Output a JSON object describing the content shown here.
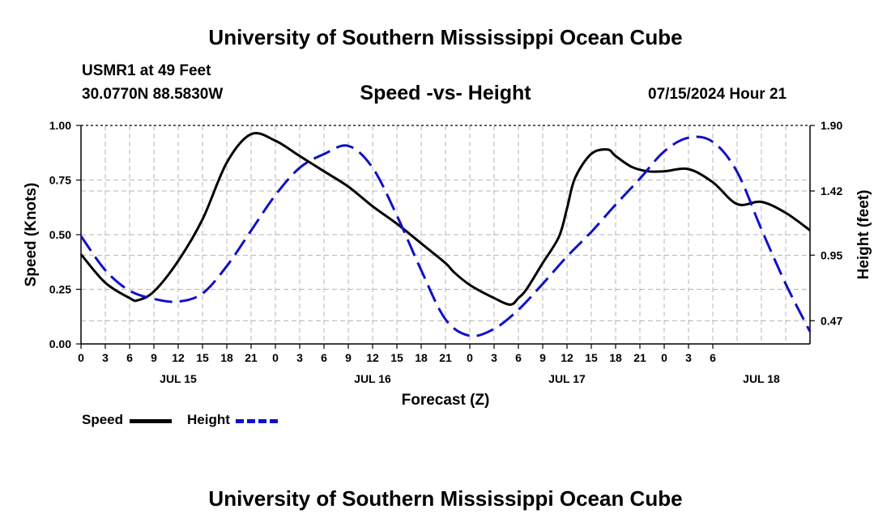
{
  "title_top": "University of Southern Mississippi Ocean Cube",
  "title_bottom": "University of Southern Mississippi Ocean Cube",
  "station": "USMR1 at 49 Feet",
  "coords": "30.0770N  88.5830W",
  "datetime": "07/15/2024 Hour 21",
  "legend": {
    "speed_label": "Speed",
    "height_label": "Height"
  },
  "colors": {
    "speed": "#000000",
    "height": "#1010c8",
    "grid": "#b4b4b4"
  },
  "chart_data": {
    "type": "line",
    "title": "Speed -vs- Height",
    "xlabel": "Forecast (Z)",
    "ylabel": "Speed (Knots)",
    "ylabel_right": "Height (feet)",
    "x_range_hours": [
      0,
      90
    ],
    "ylim": [
      0,
      1
    ],
    "ylim_right": [
      0.3,
      1.9
    ],
    "x_tick_labels": [
      "0",
      "3",
      "6",
      "9",
      "12",
      "15",
      "18",
      "21",
      "0",
      "3",
      "6",
      "9",
      "12",
      "15",
      "18",
      "21",
      "0",
      "3",
      "6",
      "9",
      "12",
      "15",
      "18",
      "21",
      "0",
      "3",
      "6"
    ],
    "day_labels": [
      {
        "label": "JUL 15",
        "hour": 12
      },
      {
        "label": "JUL 16",
        "hour": 36
      },
      {
        "label": "JUL 17",
        "hour": 60
      },
      {
        "label": "JUL 18",
        "hour": 84
      }
    ],
    "y_ticks": [
      0.0,
      0.25,
      0.5,
      0.75,
      1.0
    ],
    "y_tick_labels": [
      "0.00",
      "0.25",
      "0.50",
      "0.75",
      "1.00"
    ],
    "y_right_ticks": [
      0.47,
      0.95,
      1.42,
      1.9
    ],
    "y_right_tick_labels": [
      "0.47",
      "0.95",
      "1.42",
      "1.90"
    ],
    "series": [
      {
        "name": "Speed",
        "axis": "left",
        "style": "solid",
        "x": [
          0,
          3,
          6,
          7,
          9,
          12,
          15,
          18,
          21,
          24,
          27,
          30,
          33,
          36,
          39,
          42,
          45,
          46,
          48,
          51,
          53,
          54,
          55,
          57,
          59,
          60,
          61,
          63,
          65,
          66,
          68,
          70,
          72,
          75,
          78,
          81,
          84,
          87,
          90
        ],
        "values": [
          0.41,
          0.28,
          0.21,
          0.2,
          0.24,
          0.38,
          0.57,
          0.83,
          0.96,
          0.93,
          0.86,
          0.79,
          0.72,
          0.63,
          0.55,
          0.46,
          0.37,
          0.33,
          0.27,
          0.21,
          0.18,
          0.21,
          0.25,
          0.37,
          0.49,
          0.62,
          0.76,
          0.87,
          0.89,
          0.86,
          0.81,
          0.79,
          0.79,
          0.8,
          0.74,
          0.64,
          0.65,
          0.6,
          0.52
        ]
      },
      {
        "name": "Height",
        "axis": "right",
        "style": "dashed",
        "x": [
          0,
          3,
          6,
          9,
          12,
          15,
          18,
          21,
          24,
          27,
          30,
          33,
          36,
          39,
          42,
          45,
          48,
          51,
          54,
          57,
          60,
          63,
          66,
          69,
          72,
          75,
          78,
          81,
          84,
          87,
          90
        ],
        "values": [
          1.09,
          0.84,
          0.69,
          0.63,
          0.61,
          0.67,
          0.87,
          1.13,
          1.39,
          1.59,
          1.69,
          1.75,
          1.59,
          1.24,
          0.84,
          0.48,
          0.36,
          0.41,
          0.55,
          0.74,
          0.94,
          1.12,
          1.32,
          1.51,
          1.71,
          1.81,
          1.78,
          1.56,
          1.14,
          0.74,
          0.39
        ]
      }
    ]
  }
}
